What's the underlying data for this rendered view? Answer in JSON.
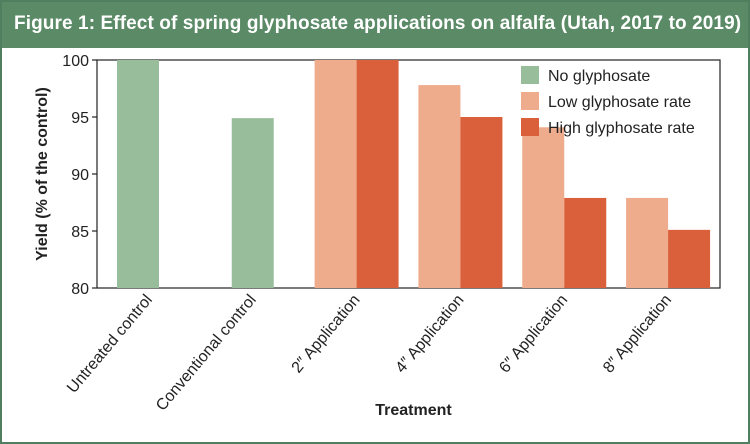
{
  "figure": {
    "title": "Figure 1: Effect of spring glyphosate applications on alfalfa (Utah, 2017 to 2019)"
  },
  "colors": {
    "header_bg": "#5a8a66",
    "no_glyphosate": "#97bd9a",
    "low_rate": "#eeac8c",
    "high_rate": "#d9603a"
  },
  "chart_data": {
    "type": "bar",
    "xlabel": "Treatment",
    "ylabel": "Yield (% of the control)",
    "ylim": [
      80,
      100
    ],
    "yticks": [
      80,
      85,
      90,
      95,
      100
    ],
    "grid": false,
    "legend_position": "top-right",
    "categories": [
      "Untreated control",
      "Conventional control",
      "2″ Application",
      "4″ Application",
      "6″ Application",
      "8″ Application"
    ],
    "series": [
      {
        "name": "No glyphosate",
        "color": "#97bd9a",
        "values": [
          100,
          94.9,
          null,
          null,
          null,
          null
        ]
      },
      {
        "name": "Low glyphosate rate",
        "color": "#eeac8c",
        "values": [
          null,
          null,
          100,
          97.8,
          94.1,
          87.9
        ]
      },
      {
        "name": "High glyphosate rate",
        "color": "#d9603a",
        "values": [
          null,
          null,
          100,
          95,
          87.9,
          85.1
        ]
      }
    ]
  }
}
